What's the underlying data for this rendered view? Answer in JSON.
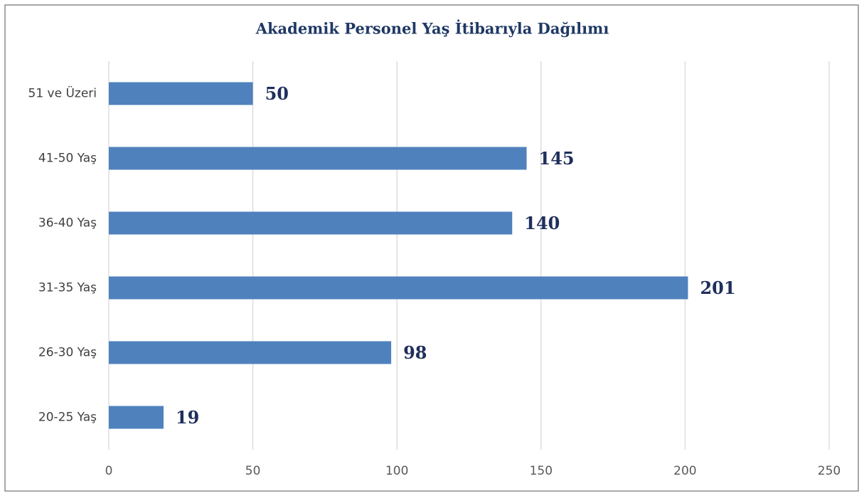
{
  "chart_data": {
    "type": "hbar",
    "title": "Akademik Personel Yaş İtibarıyla Dağılımı",
    "categories": [
      "51 ve Üzeri",
      "41-50 Yaş",
      "36-40 Yaş",
      "31-35 Yaş",
      "26-30 Yaş",
      "20-25 Yaş"
    ],
    "values": [
      50,
      145,
      140,
      201,
      98,
      19
    ],
    "color": "#4f81bd",
    "xlim": [
      0,
      250
    ],
    "xticks": [
      0,
      50,
      100,
      150,
      200,
      250
    ],
    "grid": true
  }
}
